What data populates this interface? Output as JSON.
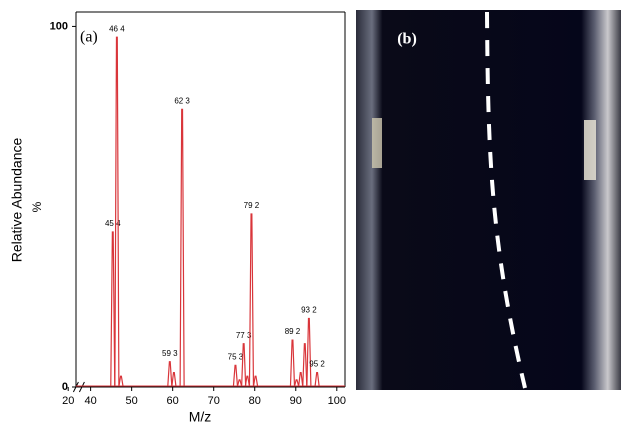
{
  "chart_data": {
    "type": "spectrum",
    "panel_label": "(a)",
    "y_label": "Relative Abundance",
    "y_unit": "%",
    "x_label": "M/z",
    "xlim": [
      18,
      102
    ],
    "x_break": [
      22,
      38
    ],
    "xticks": [
      20,
      40,
      50,
      60,
      70,
      80,
      90,
      100
    ],
    "ylim": [
      0,
      104
    ],
    "yticks": [
      0,
      100
    ],
    "color": "#d9353a",
    "x": [
      45.4,
      46.4,
      47.4,
      59.3,
      60.3,
      62.3,
      75.3,
      76.3,
      77.3,
      78.2,
      79.2,
      80.2,
      89.2,
      90.2,
      91.2,
      92.2,
      93.2,
      95.2
    ],
    "values": [
      43,
      97,
      3,
      7,
      4,
      77,
      6,
      2,
      12,
      3,
      48,
      3,
      13,
      2,
      4,
      12,
      19,
      4
    ],
    "peak_labels": [
      "45 4",
      "46 4",
      null,
      "59 3",
      null,
      "62 3",
      "75 3",
      null,
      "77 3",
      null,
      "79 2",
      null,
      "89 2",
      null,
      null,
      null,
      "93 2",
      "95 2"
    ]
  },
  "photo": {
    "panel_label": "(b)"
  }
}
